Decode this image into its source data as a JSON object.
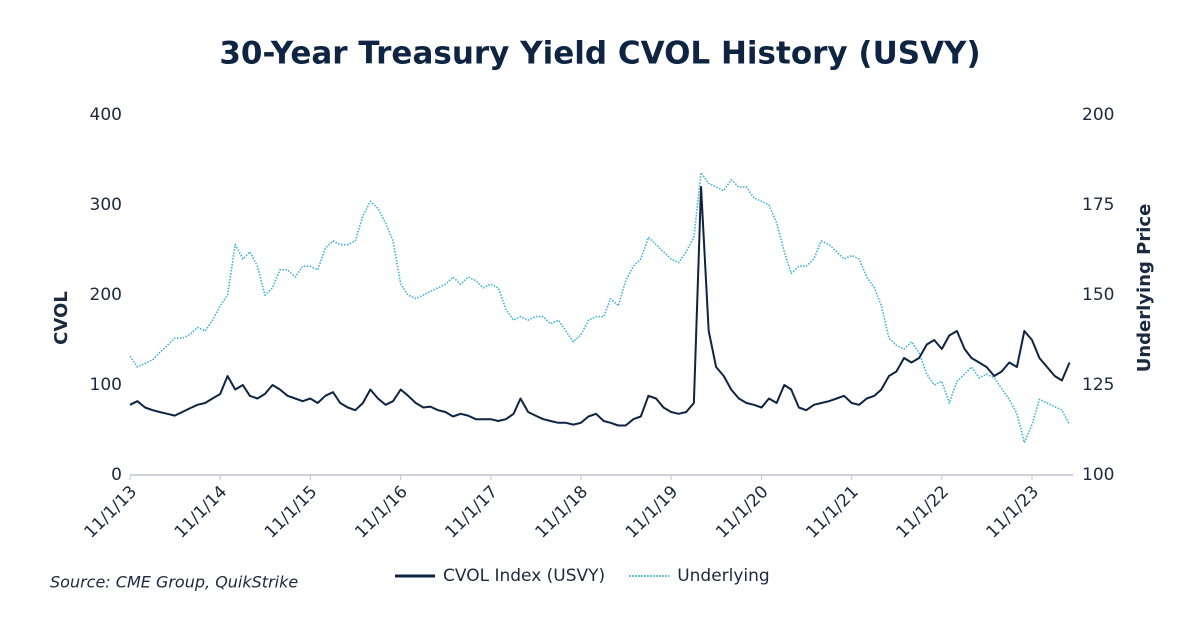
{
  "chart_data": {
    "type": "line",
    "title": "30-Year Treasury Yield CVOL History (USVY)",
    "ylabel": "CVOL",
    "y2label": "Underlying Price",
    "source": "Source: CME Group, QuikStrike",
    "x": [
      "2013-11-01",
      "2013-12-01",
      "2014-01-01",
      "2014-02-01",
      "2014-03-01",
      "2014-04-01",
      "2014-05-01",
      "2014-06-01",
      "2014-07-01",
      "2014-08-01",
      "2014-09-01",
      "2014-10-01",
      "2014-11-01",
      "2014-12-01",
      "2015-01-01",
      "2015-02-01",
      "2015-03-01",
      "2015-04-01",
      "2015-05-01",
      "2015-06-01",
      "2015-07-01",
      "2015-08-01",
      "2015-09-01",
      "2015-10-01",
      "2015-11-01",
      "2015-12-01",
      "2016-01-01",
      "2016-02-01",
      "2016-03-01",
      "2016-04-01",
      "2016-05-01",
      "2016-06-01",
      "2016-07-01",
      "2016-08-01",
      "2016-09-01",
      "2016-10-01",
      "2016-11-01",
      "2016-12-01",
      "2017-01-01",
      "2017-02-01",
      "2017-03-01",
      "2017-04-01",
      "2017-05-01",
      "2017-06-01",
      "2017-07-01",
      "2017-08-01",
      "2017-09-01",
      "2017-10-01",
      "2017-11-01",
      "2017-12-01",
      "2018-01-01",
      "2018-02-01",
      "2018-03-01",
      "2018-04-01",
      "2018-05-01",
      "2018-06-01",
      "2018-07-01",
      "2018-08-01",
      "2018-09-01",
      "2018-10-01",
      "2018-11-01",
      "2018-12-01",
      "2019-01-01",
      "2019-02-01",
      "2019-03-01",
      "2019-04-01",
      "2019-05-01",
      "2019-06-01",
      "2019-07-01",
      "2019-08-01",
      "2019-09-01",
      "2019-10-01",
      "2019-11-01",
      "2019-12-01",
      "2020-01-01",
      "2020-02-01",
      "2020-03-01",
      "2020-04-01",
      "2020-05-01",
      "2020-06-01",
      "2020-07-01",
      "2020-08-01",
      "2020-09-01",
      "2020-10-01",
      "2020-11-01",
      "2020-12-01",
      "2021-01-01",
      "2021-02-01",
      "2021-03-01",
      "2021-04-01",
      "2021-05-01",
      "2021-06-01",
      "2021-07-01",
      "2021-08-01",
      "2021-09-01",
      "2021-10-01",
      "2021-11-01",
      "2021-12-01",
      "2022-01-01",
      "2022-02-01",
      "2022-03-01",
      "2022-04-01",
      "2022-05-01",
      "2022-06-01",
      "2022-07-01",
      "2022-08-01",
      "2022-09-01",
      "2022-10-01",
      "2022-11-01",
      "2022-12-01",
      "2023-01-01",
      "2023-02-01",
      "2023-03-01",
      "2023-04-01",
      "2023-05-01",
      "2023-06-01",
      "2023-07-01",
      "2023-08-01",
      "2023-09-01",
      "2023-10-01",
      "2023-11-01",
      "2023-12-01",
      "2024-01-01",
      "2024-02-01",
      "2024-03-01",
      "2024-04-01"
    ],
    "series": [
      {
        "name": "CVOL Index (USVY)",
        "color": "#0e2442",
        "style": "solid",
        "values": [
          78,
          82,
          75,
          72,
          70,
          68,
          66,
          70,
          74,
          78,
          80,
          85,
          90,
          110,
          95,
          100,
          88,
          85,
          90,
          100,
          95,
          88,
          85,
          82,
          85,
          80,
          88,
          92,
          80,
          75,
          72,
          80,
          95,
          85,
          78,
          82,
          95,
          88,
          80,
          75,
          76,
          72,
          70,
          65,
          68,
          66,
          62,
          62,
          62,
          60,
          62,
          68,
          85,
          70,
          66,
          62,
          60,
          58,
          58,
          56,
          58,
          65,
          68,
          60,
          58,
          55,
          55,
          62,
          65,
          88,
          85,
          75,
          70,
          68,
          70,
          80,
          320,
          160,
          120,
          110,
          95,
          85,
          80,
          78,
          75,
          85,
          80,
          100,
          95,
          75,
          72,
          78,
          80,
          82,
          85,
          88,
          80,
          78,
          85,
          88,
          95,
          110,
          115,
          130,
          125,
          130,
          145,
          150,
          140,
          155,
          160,
          140,
          130,
          125,
          120,
          110,
          115,
          125,
          120,
          160,
          150,
          130,
          120,
          110,
          105,
          125
        ]
      },
      {
        "name": "Underlying",
        "color": "#3bb0d9",
        "style": "dotted",
        "axis": "y2",
        "values": [
          133,
          130,
          131,
          132,
          134,
          136,
          138,
          138,
          139,
          141,
          140,
          143,
          147,
          150,
          164,
          160,
          162,
          158,
          150,
          152,
          157,
          157,
          155,
          158,
          158,
          157,
          163,
          165,
          164,
          164,
          165,
          172,
          176,
          174,
          170,
          165,
          153,
          150,
          149,
          150,
          151,
          152,
          153,
          155,
          153,
          155,
          154,
          152,
          153,
          152,
          146,
          143,
          144,
          143,
          144,
          144,
          142,
          143,
          140,
          137,
          139,
          143,
          144,
          144,
          149,
          147,
          154,
          158,
          160,
          166,
          164,
          162,
          160,
          159,
          162,
          166,
          184,
          181,
          180,
          179,
          182,
          180,
          180,
          177,
          176,
          175,
          170,
          162,
          156,
          158,
          158,
          160,
          165,
          164,
          162,
          160,
          161,
          160,
          155,
          152,
          147,
          138,
          136,
          135,
          137,
          134,
          128,
          125,
          126,
          120,
          126,
          128,
          130,
          127,
          128,
          127,
          124,
          121,
          117,
          109,
          114,
          121,
          120,
          119,
          118,
          114
        ]
      }
    ],
    "xlim": [
      "2013-11-01",
      "2024-04-15"
    ],
    "xticks": [
      {
        "value": "2013-11-01",
        "label": "11/1/13"
      },
      {
        "value": "2014-11-01",
        "label": "11/1/14"
      },
      {
        "value": "2015-11-01",
        "label": "11/1/15"
      },
      {
        "value": "2016-11-01",
        "label": "11/1/16"
      },
      {
        "value": "2017-11-01",
        "label": "11/1/17"
      },
      {
        "value": "2018-11-01",
        "label": "11/1/18"
      },
      {
        "value": "2019-11-01",
        "label": "11/1/19"
      },
      {
        "value": "2020-11-01",
        "label": "11/1/20"
      },
      {
        "value": "2021-11-01",
        "label": "11/1/21"
      },
      {
        "value": "2022-11-01",
        "label": "11/1/22"
      },
      {
        "value": "2023-11-01",
        "label": "11/1/23"
      }
    ],
    "ylim": [
      0,
      400
    ],
    "yticks": [
      0,
      100,
      200,
      300,
      400
    ],
    "y2lim": [
      100,
      200
    ],
    "y2ticks": [
      100,
      125,
      150,
      175,
      200
    ],
    "grid": false
  }
}
